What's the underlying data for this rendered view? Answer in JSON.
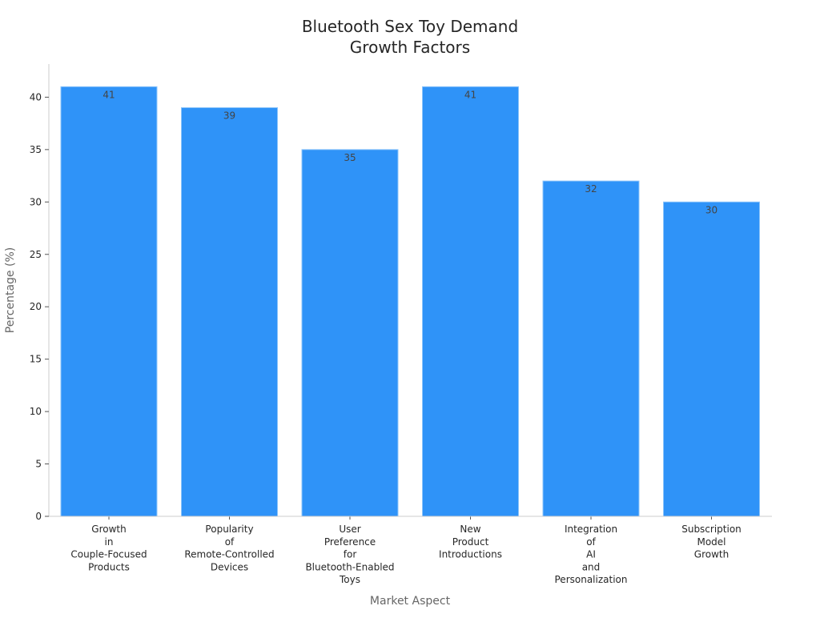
{
  "chart_data": {
    "type": "bar",
    "title": [
      "Bluetooth Sex Toy Demand",
      "Growth Factors"
    ],
    "xlabel": "Market Aspect",
    "ylabel": "Percentage (%)",
    "ylim": [
      0,
      43
    ],
    "yticks": [
      0,
      5,
      10,
      15,
      20,
      25,
      30,
      35,
      40
    ],
    "grid": false,
    "bar_color": "#2f93f8",
    "categories": [
      [
        "Growth",
        "in",
        "Couple-Focused",
        "Products"
      ],
      [
        "Popularity",
        "of",
        "Remote-Controlled",
        "Devices"
      ],
      [
        "User",
        "Preference",
        "for",
        "Bluetooth-Enabled",
        "Toys"
      ],
      [
        "New",
        "Product",
        "Introductions"
      ],
      [
        "Integration",
        "of",
        "AI",
        "and",
        "Personalization"
      ],
      [
        "Subscription",
        "Model",
        "Growth"
      ]
    ],
    "values": [
      41,
      39,
      35,
      41,
      32,
      30
    ]
  }
}
